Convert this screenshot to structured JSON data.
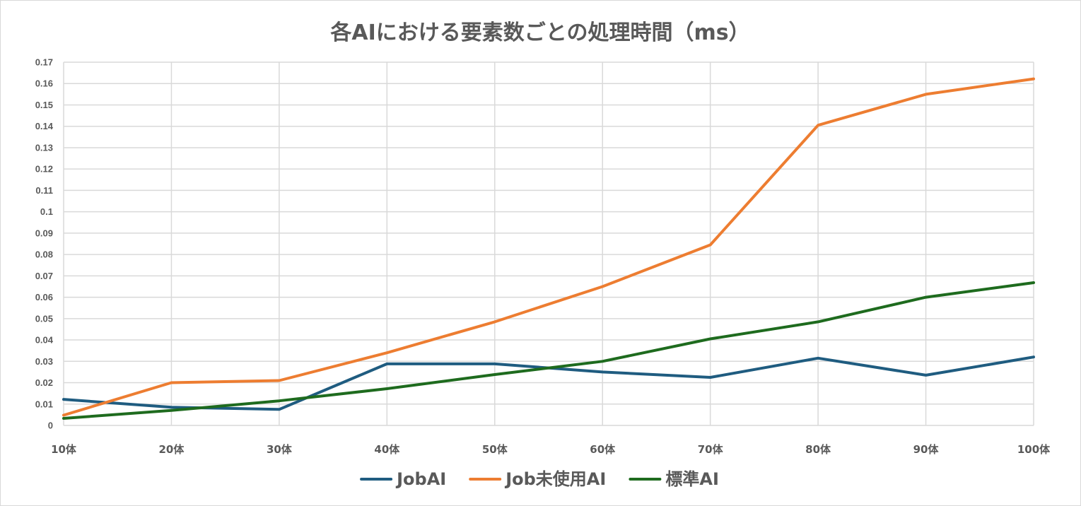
{
  "chart_data": {
    "type": "line",
    "title": "各AIにおける要素数ごとの処理時間（ms）",
    "categories": [
      "10体",
      "20体",
      "30体",
      "40体",
      "50体",
      "60体",
      "70体",
      "80体",
      "90体",
      "100体"
    ],
    "y_ticks": [
      "0",
      "0.01",
      "0.02",
      "0.03",
      "0.04",
      "0.05",
      "0.06",
      "0.07",
      "0.08",
      "0.09",
      "0.1",
      "0.11",
      "0.12",
      "0.13",
      "0.14",
      "0.15",
      "0.16",
      "0.17"
    ],
    "ylim": [
      0,
      0.17
    ],
    "grid": true,
    "legend_position": "bottom",
    "series": [
      {
        "name": "JobAI",
        "color": "#1f5c80",
        "values": [
          0.0122,
          0.0085,
          0.0075,
          0.0288,
          0.0288,
          0.025,
          0.0225,
          0.0315,
          0.0235,
          0.032
        ]
      },
      {
        "name": "Job未使用AI",
        "color": "#ed7d31",
        "values": [
          0.0048,
          0.02,
          0.021,
          0.034,
          0.0485,
          0.065,
          0.0845,
          0.1405,
          0.155,
          0.1622
        ]
      },
      {
        "name": "標準AI",
        "color": "#1e6b1e",
        "values": [
          0.0033,
          0.007,
          0.0115,
          0.0172,
          0.0238,
          0.03,
          0.0405,
          0.0485,
          0.06,
          0.0668
        ]
      }
    ]
  }
}
